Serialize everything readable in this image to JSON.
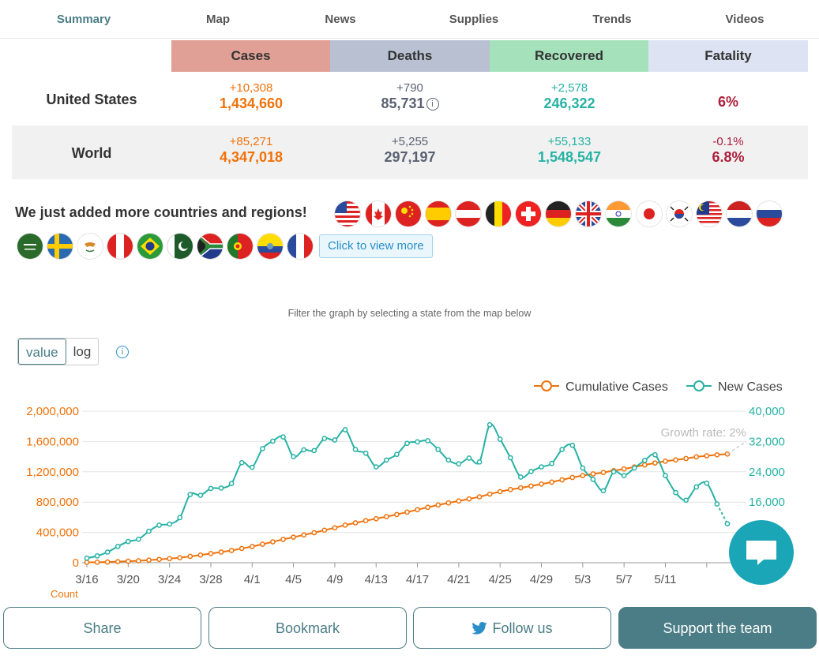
{
  "nav": {
    "tabs": [
      "Summary",
      "Map",
      "News",
      "Supplies",
      "Trends",
      "Videos"
    ]
  },
  "table": {
    "headers": [
      "Cases",
      "Deaths",
      "Recovered",
      "Fatality"
    ],
    "header_colors": [
      "#e0a095",
      "#b8c0d2",
      "#a5e2bc",
      "#dde3f2"
    ],
    "us": {
      "label": "United States",
      "cases_delta": "+10,308",
      "cases": "1,434,660",
      "deaths_delta": "+790",
      "deaths": "85,731",
      "recovered_delta": "+2,578",
      "recovered": "246,322",
      "fatality": "6%"
    },
    "world": {
      "label": "World",
      "cases_delta": "+85,271",
      "cases": "4,347,018",
      "deaths_delta": "+5,255",
      "deaths": "297,197",
      "recovered_delta": "+55,133",
      "recovered": "1,548,547",
      "fatality_delta": "-0.1%",
      "fatality": "6.8%"
    }
  },
  "added_text": "We just added more countries and regions!",
  "view_more": "Click to view more",
  "info_icon_glyph": "i",
  "filter_text": "Filter the graph by selecting a state from the map below",
  "toggle": {
    "value": "value",
    "log": "log"
  },
  "chart_data": {
    "type": "line",
    "legend": [
      "Cumulative Cases",
      "New Cases"
    ],
    "growth_label": "Growth rate: 2%",
    "x_ticks": [
      "3/16",
      "3/20",
      "3/24",
      "3/28",
      "4/1",
      "4/5",
      "4/9",
      "4/13",
      "4/17",
      "4/21",
      "4/25",
      "4/29",
      "5/3",
      "5/7",
      "5/11"
    ],
    "left_axis": {
      "ticks": [
        "0",
        "400,000",
        "800,000",
        "1,200,000",
        "1,600,000",
        "2,000,000"
      ],
      "ylim": [
        0,
        2000000
      ],
      "label": "Count"
    },
    "right_axis": {
      "ticks": [
        "16,000",
        "24,000",
        "32,000",
        "40,000"
      ],
      "ylim": [
        0,
        40000
      ]
    },
    "x_start_day_label": "3/16",
    "series": [
      {
        "name": "Cumulative Cases",
        "color": "#f0720a",
        "values": [
          4600,
          6400,
          9400,
          13700,
          19300,
          25500,
          33800,
          43700,
          53900,
          65800,
          83800,
          101600,
          121200,
          140900,
          161800,
          188200,
          213400,
          243500,
          275600,
          308800,
          336800,
          366600,
          396200,
          429000,
          461400,
          496500,
          526400,
          555300,
          580600,
          607700,
          636300,
          667800,
          699700,
          731900,
          761800,
          788900,
          815000,
          842600,
          869200,
          905600,
          938200,
          965900,
          988500,
          1012600,
          1037900,
          1064100,
          1094000,
          1125000,
          1150000,
          1172000,
          1191000,
          1215000,
          1238000,
          1263000,
          1290000,
          1316000,
          1340000,
          1357000,
          1375000,
          1397000,
          1412000,
          1424000,
          1434660
        ]
      },
      {
        "name": "New Cases",
        "color": "#27b2a4",
        "values": [
          1200,
          1800,
          2800,
          4300,
          5600,
          6200,
          8300,
          9900,
          10200,
          11900,
          18000,
          17800,
          19600,
          19700,
          20900,
          26400,
          25200,
          30100,
          32100,
          33200,
          28000,
          29800,
          29600,
          32800,
          32400,
          35100,
          29900,
          28900,
          25300,
          27100,
          28600,
          31500,
          31900,
          32200,
          29900,
          27100,
          26100,
          27600,
          26600,
          36400,
          32600,
          27700,
          22600,
          24100,
          25300,
          26200,
          29900,
          31000,
          25000,
          22000,
          19000,
          24000,
          23000,
          25000,
          27000,
          28500,
          23000,
          18500,
          16500,
          20000,
          21000,
          15500,
          10300
        ]
      }
    ]
  },
  "buttons": {
    "share": "Share",
    "bookmark": "Bookmark",
    "follow": "Follow us",
    "support": "Support the team"
  }
}
